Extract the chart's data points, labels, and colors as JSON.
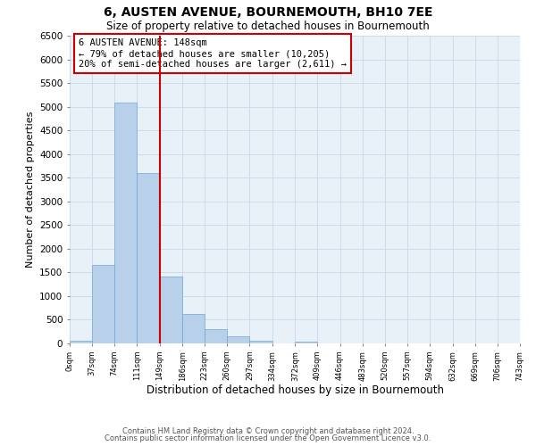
{
  "title": "6, AUSTEN AVENUE, BOURNEMOUTH, BH10 7EE",
  "subtitle": "Size of property relative to detached houses in Bournemouth",
  "xlabel": "Distribution of detached houses by size in Bournemouth",
  "ylabel": "Number of detached properties",
  "bin_edges": [
    0,
    37,
    74,
    111,
    149,
    186,
    223,
    260,
    297,
    334,
    372,
    409,
    446,
    483,
    520,
    557,
    594,
    632,
    669,
    706,
    743
  ],
  "bin_labels": [
    "0sqm",
    "37sqm",
    "74sqm",
    "111sqm",
    "149sqm",
    "186sqm",
    "223sqm",
    "260sqm",
    "297sqm",
    "334sqm",
    "372sqm",
    "409sqm",
    "446sqm",
    "483sqm",
    "520sqm",
    "557sqm",
    "594sqm",
    "632sqm",
    "669sqm",
    "706sqm",
    "743sqm"
  ],
  "counts": [
    50,
    1650,
    5080,
    3600,
    1420,
    620,
    300,
    155,
    60,
    0,
    45,
    0,
    0,
    0,
    0,
    0,
    0,
    0,
    0,
    0
  ],
  "bar_color": "#b8d0ea",
  "bar_edge_color": "#6fa8d4",
  "vline_x": 149,
  "vline_color": "#cc0000",
  "annotation_title": "6 AUSTEN AVENUE: 148sqm",
  "annotation_line1": "← 79% of detached houses are smaller (10,205)",
  "annotation_line2": "20% of semi-detached houses are larger (2,611) →",
  "annotation_box_color": "#cc0000",
  "ylim": [
    0,
    6500
  ],
  "yticks": [
    0,
    500,
    1000,
    1500,
    2000,
    2500,
    3000,
    3500,
    4000,
    4500,
    5000,
    5500,
    6000,
    6500
  ],
  "grid_color": "#c8d8ec",
  "bg_color": "#e8f0f8",
  "footer1": "Contains HM Land Registry data © Crown copyright and database right 2024.",
  "footer2": "Contains public sector information licensed under the Open Government Licence v3.0."
}
